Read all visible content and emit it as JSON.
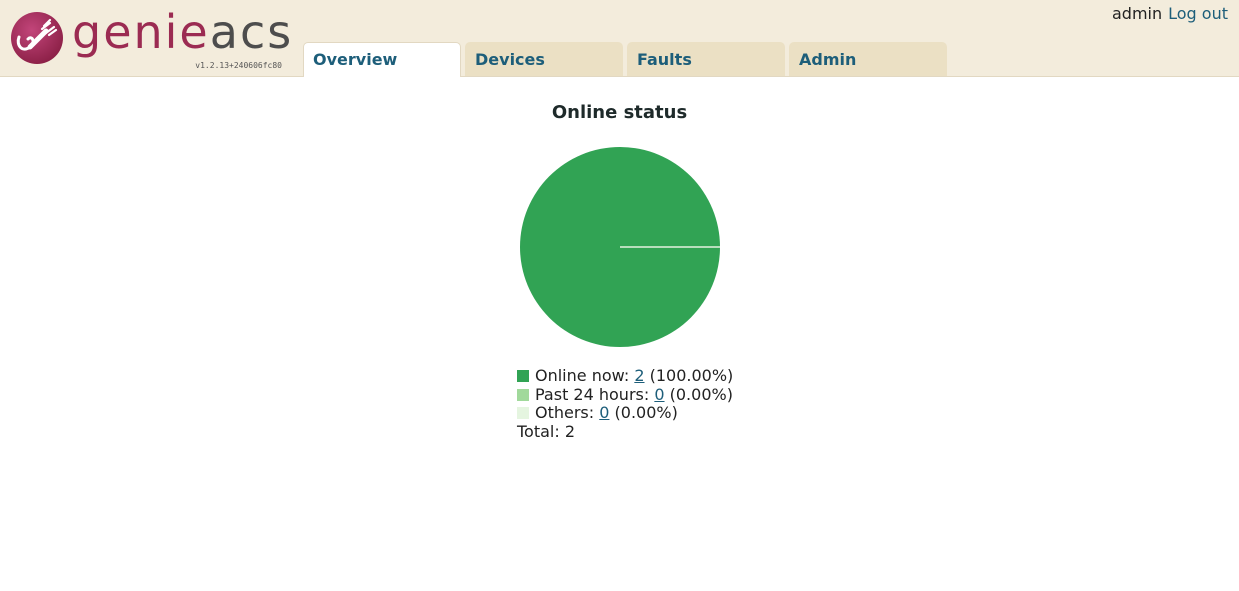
{
  "header": {
    "logo": {
      "word_genie": "genie",
      "word_acs": "acs",
      "version": "v1.2.13+240606fc80"
    },
    "user": {
      "username": "admin",
      "logout_label": "Log out"
    },
    "tabs": [
      {
        "label": "Overview",
        "active": true
      },
      {
        "label": "Devices",
        "active": false
      },
      {
        "label": "Faults",
        "active": false
      },
      {
        "label": "Admin",
        "active": false
      }
    ]
  },
  "main": {
    "chart_title": "Online status"
  },
  "chart_data": {
    "type": "pie",
    "title": "Online status",
    "slices": [
      {
        "label": "Online now",
        "count": 2,
        "percent": "100.00%",
        "color": "#31a354"
      },
      {
        "label": "Past 24 hours",
        "count": 0,
        "percent": "0.00%",
        "color": "#a1d99b"
      },
      {
        "label": "Others",
        "count": 0,
        "percent": "0.00%",
        "color": "#e5f5e0"
      }
    ],
    "total_label": "Total:",
    "total": 2
  },
  "legend": [
    {
      "label": "Online now:",
      "count": "2",
      "percent": "(100.00%)"
    },
    {
      "label": "Past 24 hours:",
      "count": "0",
      "percent": "(0.00%)"
    },
    {
      "label": "Others:",
      "count": "0",
      "percent": "(0.00%)"
    }
  ],
  "total_row": {
    "label": "Total:",
    "value": "2"
  },
  "colors": {
    "header_bg": "#f3ecdc",
    "tab_bg": "#ebe0c4",
    "link": "#1d5e7a",
    "brand": "#9b2b52"
  }
}
